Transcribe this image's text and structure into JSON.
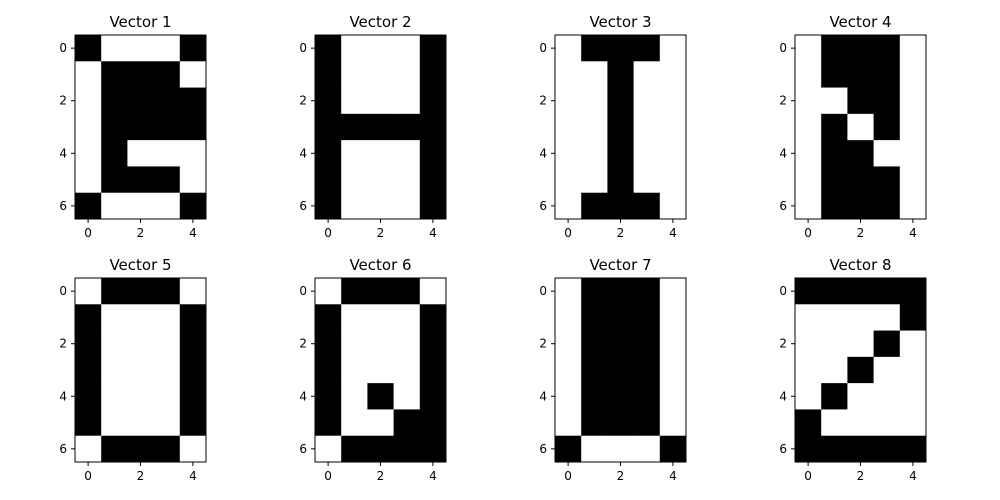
{
  "chart_data": [
    {
      "type": "heatmap",
      "title": "Vector 1",
      "xticks": [
        "0",
        "2",
        "4"
      ],
      "yticks": [
        "0",
        "2",
        "4",
        "6"
      ],
      "xlim": [
        -0.5,
        4.5
      ],
      "ylim": [
        6.5,
        -0.5
      ],
      "grid": false,
      "colors": {
        "1": "#000000",
        "0": "#ffffff"
      },
      "matrix": [
        [
          1,
          0,
          0,
          0,
          1
        ],
        [
          0,
          1,
          1,
          1,
          0
        ],
        [
          0,
          1,
          1,
          1,
          1
        ],
        [
          0,
          1,
          1,
          1,
          1
        ],
        [
          0,
          1,
          0,
          0,
          0
        ],
        [
          0,
          1,
          1,
          1,
          0
        ],
        [
          1,
          0,
          0,
          0,
          1
        ]
      ]
    },
    {
      "type": "heatmap",
      "title": "Vector 2",
      "xticks": [
        "0",
        "2",
        "4"
      ],
      "yticks": [
        "0",
        "2",
        "4",
        "6"
      ],
      "xlim": [
        -0.5,
        4.5
      ],
      "ylim": [
        6.5,
        -0.5
      ],
      "grid": false,
      "colors": {
        "1": "#000000",
        "0": "#ffffff"
      },
      "matrix": [
        [
          1,
          0,
          0,
          0,
          1
        ],
        [
          1,
          0,
          0,
          0,
          1
        ],
        [
          1,
          0,
          0,
          0,
          1
        ],
        [
          1,
          1,
          1,
          1,
          1
        ],
        [
          1,
          0,
          0,
          0,
          1
        ],
        [
          1,
          0,
          0,
          0,
          1
        ],
        [
          1,
          0,
          0,
          0,
          1
        ]
      ]
    },
    {
      "type": "heatmap",
      "title": "Vector 3",
      "xticks": [
        "0",
        "2",
        "4"
      ],
      "yticks": [
        "0",
        "2",
        "4",
        "6"
      ],
      "xlim": [
        -0.5,
        4.5
      ],
      "ylim": [
        6.5,
        -0.5
      ],
      "grid": false,
      "colors": {
        "1": "#000000",
        "0": "#ffffff"
      },
      "matrix": [
        [
          0,
          1,
          1,
          1,
          0
        ],
        [
          0,
          0,
          1,
          0,
          0
        ],
        [
          0,
          0,
          1,
          0,
          0
        ],
        [
          0,
          0,
          1,
          0,
          0
        ],
        [
          0,
          0,
          1,
          0,
          0
        ],
        [
          0,
          0,
          1,
          0,
          0
        ],
        [
          0,
          1,
          1,
          1,
          0
        ]
      ]
    },
    {
      "type": "heatmap",
      "title": "Vector 4",
      "xticks": [
        "0",
        "2",
        "4"
      ],
      "yticks": [
        "0",
        "2",
        "4",
        "6"
      ],
      "xlim": [
        -0.5,
        4.5
      ],
      "ylim": [
        6.5,
        -0.5
      ],
      "grid": false,
      "colors": {
        "1": "#000000",
        "0": "#ffffff"
      },
      "matrix": [
        [
          0,
          1,
          1,
          1,
          0
        ],
        [
          0,
          1,
          1,
          1,
          0
        ],
        [
          0,
          0,
          1,
          1,
          0
        ],
        [
          0,
          1,
          0,
          1,
          0
        ],
        [
          0,
          1,
          1,
          0,
          0
        ],
        [
          0,
          1,
          1,
          1,
          0
        ],
        [
          0,
          1,
          1,
          1,
          0
        ]
      ]
    },
    {
      "type": "heatmap",
      "title": "Vector 5",
      "xticks": [
        "0",
        "2",
        "4"
      ],
      "yticks": [
        "0",
        "2",
        "4",
        "6"
      ],
      "xlim": [
        -0.5,
        4.5
      ],
      "ylim": [
        6.5,
        -0.5
      ],
      "grid": false,
      "colors": {
        "1": "#000000",
        "0": "#ffffff"
      },
      "matrix": [
        [
          0,
          1,
          1,
          1,
          0
        ],
        [
          1,
          0,
          0,
          0,
          1
        ],
        [
          1,
          0,
          0,
          0,
          1
        ],
        [
          1,
          0,
          0,
          0,
          1
        ],
        [
          1,
          0,
          0,
          0,
          1
        ],
        [
          1,
          0,
          0,
          0,
          1
        ],
        [
          0,
          1,
          1,
          1,
          0
        ]
      ]
    },
    {
      "type": "heatmap",
      "title": "Vector 6",
      "xticks": [
        "0",
        "2",
        "4"
      ],
      "yticks": [
        "0",
        "2",
        "4",
        "6"
      ],
      "xlim": [
        -0.5,
        4.5
      ],
      "ylim": [
        6.5,
        -0.5
      ],
      "grid": false,
      "colors": {
        "1": "#000000",
        "0": "#ffffff"
      },
      "matrix": [
        [
          0,
          1,
          1,
          1,
          0
        ],
        [
          1,
          0,
          0,
          0,
          1
        ],
        [
          1,
          0,
          0,
          0,
          1
        ],
        [
          1,
          0,
          0,
          0,
          1
        ],
        [
          1,
          0,
          1,
          0,
          1
        ],
        [
          1,
          0,
          0,
          1,
          1
        ],
        [
          0,
          1,
          1,
          1,
          1
        ]
      ]
    },
    {
      "type": "heatmap",
      "title": "Vector 7",
      "xticks": [
        "0",
        "2",
        "4"
      ],
      "yticks": [
        "0",
        "2",
        "4",
        "6"
      ],
      "xlim": [
        -0.5,
        4.5
      ],
      "ylim": [
        6.5,
        -0.5
      ],
      "grid": false,
      "colors": {
        "1": "#000000",
        "0": "#ffffff"
      },
      "matrix": [
        [
          0,
          1,
          1,
          1,
          0
        ],
        [
          0,
          1,
          1,
          1,
          0
        ],
        [
          0,
          1,
          1,
          1,
          0
        ],
        [
          0,
          1,
          1,
          1,
          0
        ],
        [
          0,
          1,
          1,
          1,
          0
        ],
        [
          0,
          1,
          1,
          1,
          0
        ],
        [
          1,
          0,
          0,
          0,
          1
        ]
      ]
    },
    {
      "type": "heatmap",
      "title": "Vector 8",
      "xticks": [
        "0",
        "2",
        "4"
      ],
      "yticks": [
        "0",
        "2",
        "4",
        "6"
      ],
      "xlim": [
        -0.5,
        4.5
      ],
      "ylim": [
        6.5,
        -0.5
      ],
      "grid": false,
      "colors": {
        "1": "#000000",
        "0": "#ffffff"
      },
      "matrix": [
        [
          1,
          1,
          1,
          1,
          1
        ],
        [
          0,
          0,
          0,
          0,
          1
        ],
        [
          0,
          0,
          0,
          1,
          0
        ],
        [
          0,
          0,
          1,
          0,
          0
        ],
        [
          0,
          1,
          0,
          0,
          0
        ],
        [
          1,
          0,
          0,
          0,
          0
        ],
        [
          1,
          1,
          1,
          1,
          1
        ]
      ]
    }
  ]
}
